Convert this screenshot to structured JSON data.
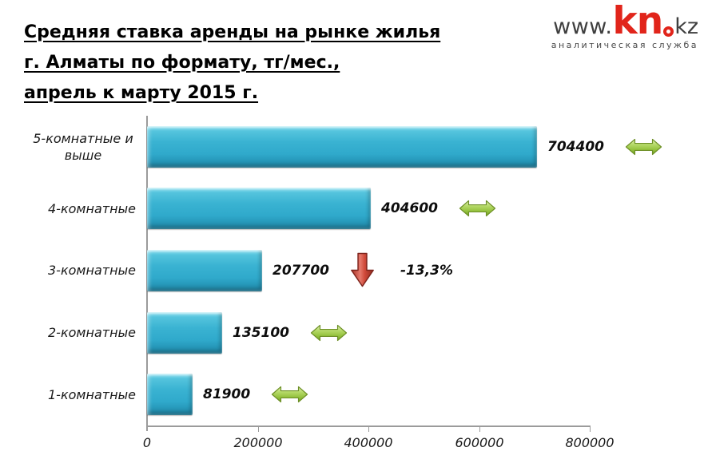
{
  "header": {
    "title_lines": [
      "Средняя ставка аренды на рынке жилья",
      "г. Алматы по формату, тг/мес.,",
      "апрель к марту 2015 г."
    ]
  },
  "logo": {
    "www": "www.",
    "kn": "kn",
    "kz": "kz",
    "tagline": "аналитическая служба",
    "brand_red": "#e1251b",
    "brand_dark": "#3f3f3f"
  },
  "chart_data": {
    "type": "bar",
    "orientation": "horizontal",
    "title": "Средняя ставка аренды на рынке жилья г. Алматы по формату, тг/мес., апрель к марту 2015 г.",
    "categories": [
      "5-комнатные и выше",
      "4-комнатные",
      "3-комнатные",
      "2-комнатные",
      "1-комнатные"
    ],
    "values": [
      704400,
      404600,
      207700,
      135100,
      81900
    ],
    "value_labels": [
      "704400",
      "404600",
      "207700",
      "135100",
      "81900"
    ],
    "changes": [
      {
        "direction": "stable",
        "label": ""
      },
      {
        "direction": "stable",
        "label": ""
      },
      {
        "direction": "down",
        "label": "-13,3%"
      },
      {
        "direction": "stable",
        "label": ""
      },
      {
        "direction": "stable",
        "label": ""
      }
    ],
    "xlabel": "",
    "ylabel": "",
    "xlim": [
      0,
      800000
    ],
    "x_ticks": [
      0,
      200000,
      400000,
      600000,
      800000
    ],
    "x_tick_labels": [
      "0",
      "200000",
      "400000",
      "600000",
      "800000"
    ],
    "grid": false,
    "legend": null,
    "bar_color": "#3ab3d2",
    "stable_arrow_color": "#93c13c",
    "down_arrow_color": "#c0392b",
    "axis_color": "#9b9b9b"
  }
}
